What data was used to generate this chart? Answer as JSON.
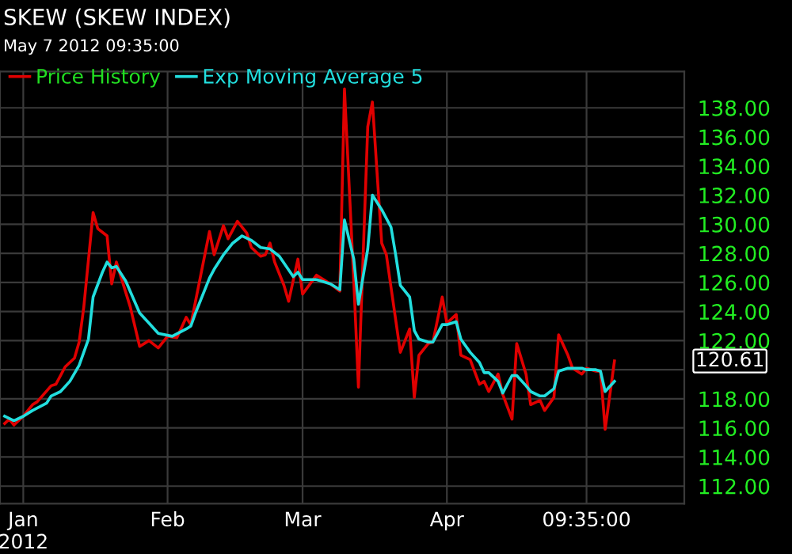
{
  "chart_data": {
    "type": "line",
    "title": "SKEW (SKEW INDEX)",
    "subtitle": "May 7 2012 09:35:00",
    "series": [
      {
        "name": "Price History",
        "color": "#e00000",
        "x": [
          "2011-12-28",
          "2011-12-29",
          "2011-12-30",
          "2012-01-01",
          "2012-01-03",
          "2012-01-04",
          "2012-01-07",
          "2012-01-08",
          "2012-01-10",
          "2012-01-12",
          "2012-01-13",
          "2012-01-14",
          "2012-01-16",
          "2012-01-17",
          "2012-01-19",
          "2012-01-20",
          "2012-01-21",
          "2012-01-24",
          "2012-01-26",
          "2012-01-28",
          "2012-01-30",
          "2012-02-01",
          "2012-02-03",
          "2012-02-05",
          "2012-02-06",
          "2012-02-08",
          "2012-02-10",
          "2012-02-11",
          "2012-02-13",
          "2012-02-14",
          "2012-02-16",
          "2012-02-18",
          "2012-02-19",
          "2012-02-21",
          "2012-02-22",
          "2012-02-23",
          "2012-02-24",
          "2012-02-26",
          "2012-02-27",
          "2012-02-29",
          "2012-03-01",
          "2012-03-04",
          "2012-03-07",
          "2012-03-09",
          "2012-03-10",
          "2012-03-12",
          "2012-03-13",
          "2012-03-15",
          "2012-03-16",
          "2012-03-18",
          "2012-03-19",
          "2012-03-22",
          "2012-03-24",
          "2012-03-25",
          "2012-03-26",
          "2012-03-28",
          "2012-03-29",
          "2012-03-31",
          "2012-04-01",
          "2012-04-03",
          "2012-04-04",
          "2012-04-06",
          "2012-04-08",
          "2012-04-09",
          "2012-04-10",
          "2012-04-12",
          "2012-04-13",
          "2012-04-15",
          "2012-04-16",
          "2012-04-18",
          "2012-04-19",
          "2012-04-21",
          "2012-04-22",
          "2012-04-24",
          "2012-04-25",
          "2012-04-27",
          "2012-04-28",
          "2012-04-30",
          "2012-05-01",
          "2012-05-03",
          "2012-05-04",
          "2012-05-05",
          "2012-05-07"
        ],
        "values": [
          116.3,
          116.6,
          116.2,
          116.8,
          117.6,
          117.8,
          118.9,
          119.0,
          120.2,
          120.8,
          121.9,
          124.3,
          130.8,
          129.7,
          129.2,
          125.9,
          127.4,
          124.3,
          121.6,
          122.0,
          121.5,
          122.3,
          122.2,
          123.6,
          123.1,
          126.3,
          129.5,
          127.9,
          129.9,
          129.0,
          130.2,
          129.4,
          128.4,
          127.8,
          127.9,
          128.7,
          127.4,
          125.8,
          124.7,
          127.6,
          125.2,
          126.5,
          125.9,
          125.4,
          139.3,
          126.1,
          118.8,
          136.7,
          138.4,
          128.7,
          127.9,
          121.2,
          122.8,
          118.1,
          121.0,
          121.8,
          121.9,
          125.0,
          123.2,
          123.8,
          121.0,
          120.7,
          119.0,
          119.2,
          118.5,
          119.7,
          118.3,
          116.6,
          121.8,
          119.7,
          117.6,
          117.9,
          117.2,
          118.1,
          122.4,
          121.0,
          120.1,
          119.7,
          120.1,
          119.9,
          119.9,
          115.9,
          120.6
        ]
      },
      {
        "name": "Exp Moving Average 5",
        "color": "#22dede",
        "x": [
          "2011-12-28",
          "2011-12-30",
          "2012-01-01",
          "2012-01-03",
          "2012-01-06",
          "2012-01-07",
          "2012-01-09",
          "2012-01-11",
          "2012-01-13",
          "2012-01-15",
          "2012-01-16",
          "2012-01-18",
          "2012-01-19",
          "2012-01-20",
          "2012-01-21",
          "2012-01-23",
          "2012-01-26",
          "2012-01-28",
          "2012-01-30",
          "2012-02-02",
          "2012-02-05",
          "2012-02-06",
          "2012-02-07",
          "2012-02-10",
          "2012-02-11",
          "2012-02-13",
          "2012-02-15",
          "2012-02-17",
          "2012-02-19",
          "2012-02-21",
          "2012-02-23",
          "2012-02-25",
          "2012-02-28",
          "2012-02-29",
          "2012-03-01",
          "2012-03-04",
          "2012-03-07",
          "2012-03-09",
          "2012-03-10",
          "2012-03-12",
          "2012-03-13",
          "2012-03-15",
          "2012-03-16",
          "2012-03-18",
          "2012-03-20",
          "2012-03-21",
          "2012-03-22",
          "2012-03-24",
          "2012-03-25",
          "2012-03-26",
          "2012-03-28",
          "2012-03-29",
          "2012-03-31",
          "2012-04-01",
          "2012-04-03",
          "2012-04-04",
          "2012-04-06",
          "2012-04-08",
          "2012-04-09",
          "2012-04-10",
          "2012-04-12",
          "2012-04-13",
          "2012-04-15",
          "2012-04-16",
          "2012-04-18",
          "2012-04-19",
          "2012-04-21",
          "2012-04-22",
          "2012-04-24",
          "2012-04-25",
          "2012-04-27",
          "2012-04-28",
          "2012-04-30",
          "2012-05-01",
          "2012-05-03",
          "2012-05-04",
          "2012-05-05",
          "2012-05-07"
        ],
        "values": [
          116.8,
          116.5,
          116.8,
          117.2,
          117.7,
          118.2,
          118.5,
          119.2,
          120.3,
          122.1,
          125.0,
          126.7,
          127.4,
          127.0,
          127.1,
          126.1,
          123.9,
          123.2,
          122.5,
          122.3,
          122.8,
          123.0,
          123.9,
          126.3,
          126.9,
          127.9,
          128.7,
          129.2,
          128.9,
          128.4,
          128.3,
          127.8,
          126.4,
          126.7,
          126.2,
          126.2,
          125.9,
          125.5,
          130.3,
          127.6,
          124.5,
          128.3,
          132.0,
          131.0,
          129.8,
          127.9,
          125.8,
          125.0,
          122.7,
          122.1,
          121.9,
          121.9,
          123.1,
          123.1,
          123.3,
          122.1,
          121.2,
          120.5,
          119.8,
          119.8,
          119.2,
          118.4,
          119.6,
          119.6,
          118.9,
          118.5,
          118.2,
          118.2,
          118.7,
          119.9,
          120.1,
          120.1,
          120.1,
          120.0,
          120.0,
          119.9,
          118.5,
          119.2
        ]
      }
    ],
    "annotations": [
      "120.61"
    ],
    "xlim": [
      "2011-12-27",
      "2012-05-22"
    ],
    "xticks": [
      {
        "value": "2012-01-01",
        "label": "Jan\n2012"
      },
      {
        "value": "2012-02-01",
        "label": "Feb"
      },
      {
        "value": "2012-03-01",
        "label": "Mar"
      },
      {
        "value": "2012-04-01",
        "label": "Apr"
      },
      {
        "value": "2012-05-01",
        "label": "09:35:00"
      }
    ],
    "ylim": [
      110.8,
      140.5
    ],
    "yticks": [
      {
        "value": 112,
        "label": "112.00"
      },
      {
        "value": 114,
        "label": "114.00"
      },
      {
        "value": 116,
        "label": "116.00"
      },
      {
        "value": 118,
        "label": "118.00"
      },
      {
        "value": 120,
        "label": null
      },
      {
        "value": 122,
        "label": "122.00"
      },
      {
        "value": 124,
        "label": "124.00"
      },
      {
        "value": 126,
        "label": "126.00"
      },
      {
        "value": 128,
        "label": "128.00"
      },
      {
        "value": 130,
        "label": "130.00"
      },
      {
        "value": 132,
        "label": "132.00"
      },
      {
        "value": 134,
        "label": "134.00"
      },
      {
        "value": 136,
        "label": "136.00"
      },
      {
        "value": 138,
        "label": "138.00"
      }
    ],
    "grid": true,
    "legend": "top left",
    "marker": "none",
    "line_style": "solid"
  }
}
